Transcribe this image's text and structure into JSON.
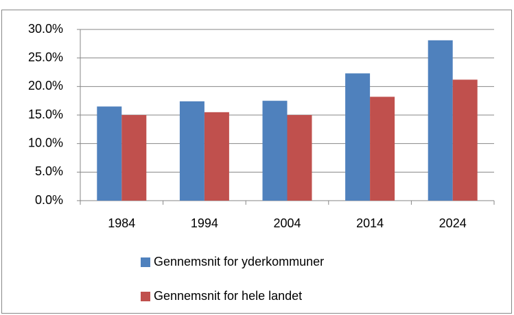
{
  "chart_data": {
    "type": "bar",
    "categories": [
      "1984",
      "1994",
      "2004",
      "2014",
      "2024"
    ],
    "series": [
      {
        "name": "Gennemsnit for yderkommuner",
        "color": "#4f81bd",
        "values": [
          16.5,
          17.4,
          17.5,
          22.3,
          28.1
        ]
      },
      {
        "name": "Gennemsnit for hele landet",
        "color": "#c0504d",
        "values": [
          15.0,
          15.5,
          15.0,
          18.2,
          21.2
        ]
      }
    ],
    "ylim": [
      0,
      30
    ],
    "yticks": [
      {
        "value": 0,
        "label": "0.0%"
      },
      {
        "value": 5,
        "label": "5.0%"
      },
      {
        "value": 10,
        "label": "10.0%"
      },
      {
        "value": 15,
        "label": "15.0%"
      },
      {
        "value": 20,
        "label": "20.0%"
      },
      {
        "value": 25,
        "label": "25.0%"
      },
      {
        "value": 30,
        "label": "30.0%"
      }
    ],
    "grid": true,
    "legend": "bottom"
  }
}
